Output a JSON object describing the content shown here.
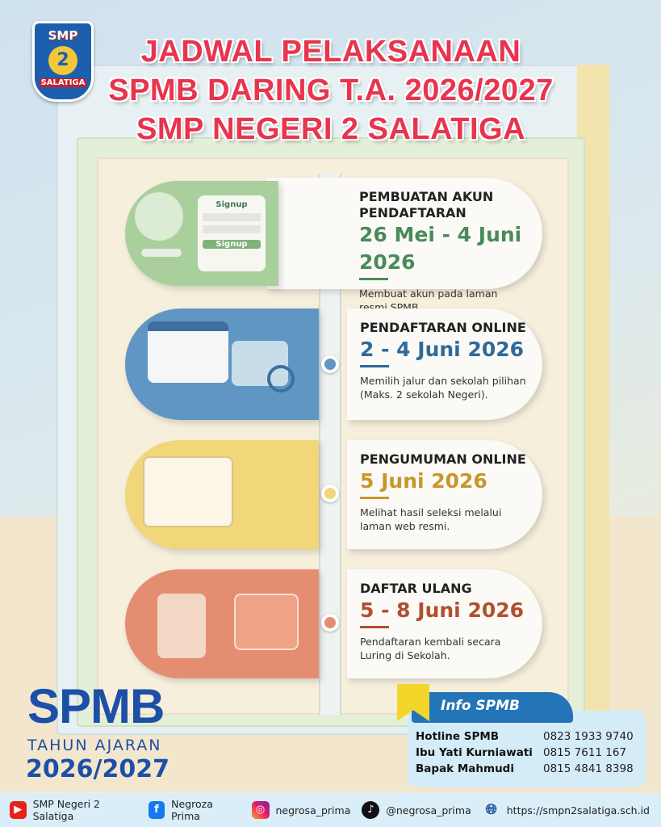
{
  "logo": {
    "top": "SMP",
    "number": "2",
    "bottom": "SALATIGA"
  },
  "title": {
    "line1": "JADWAL PELAKSANAAN",
    "line2": "SPMB DARING T.A. 2026/2027",
    "line3": "SMP NEGERI 2 SALATIGA"
  },
  "colors": {
    "title": "#e8344e",
    "step1": "#4a8a5a",
    "step2": "#2e6a9a",
    "step3": "#c8962a",
    "step4": "#b0502e",
    "brand": "#1c4fa8"
  },
  "steps": [
    {
      "heading": "PEMBUATAN AKUN PENDAFTARAN",
      "date": "26 Mei - 4 Juni 2026",
      "description": "Membuat akun pada laman resmi SPMB.",
      "illustration": "signup-form-icon",
      "form_title": "Signup",
      "form_button": "Signup"
    },
    {
      "heading": "PENDAFTARAN ONLINE",
      "date": "2 - 4 Juni 2026",
      "description": "Memilih jalur dan sekolah pilihan (Maks. 2 sekolah Negeri).",
      "illustration": "browser-school-icon"
    },
    {
      "heading": "PENGUMUMAN ONLINE",
      "date": "5 Juni 2026",
      "description": "Melihat hasil seleksi melalui laman web resmi.",
      "illustration": "open-book-icon"
    },
    {
      "heading": "DAFTAR ULANG",
      "date": "5 - 8 Juni 2026",
      "description": "Pendaftaran kembali secara Luring di Sekolah.",
      "illustration": "stamp-folder-icon"
    }
  ],
  "brand": {
    "name": "SPMB",
    "year_label": "TAHUN AJARAN",
    "year": "2026/2027"
  },
  "info": {
    "title": "Info SPMB",
    "contacts": [
      {
        "name": "Hotline SPMB",
        "phone": "0823 1933 9740"
      },
      {
        "name": "Ibu Yati Kurniawati",
        "phone": "0815 7611 167"
      },
      {
        "name": "Bapak Mahmudi",
        "phone": "0815 4841 8398"
      }
    ]
  },
  "footer": [
    {
      "icon": "youtube-icon",
      "label": "SMP Negeri 2 Salatiga"
    },
    {
      "icon": "facebook-icon",
      "label": "Negroza Prima"
    },
    {
      "icon": "instagram-icon",
      "label": "negrosa_prima"
    },
    {
      "icon": "tiktok-icon",
      "label": "@negrosa_prima"
    },
    {
      "icon": "globe-icon",
      "label": "https://smpn2salatiga.sch.id"
    }
  ]
}
